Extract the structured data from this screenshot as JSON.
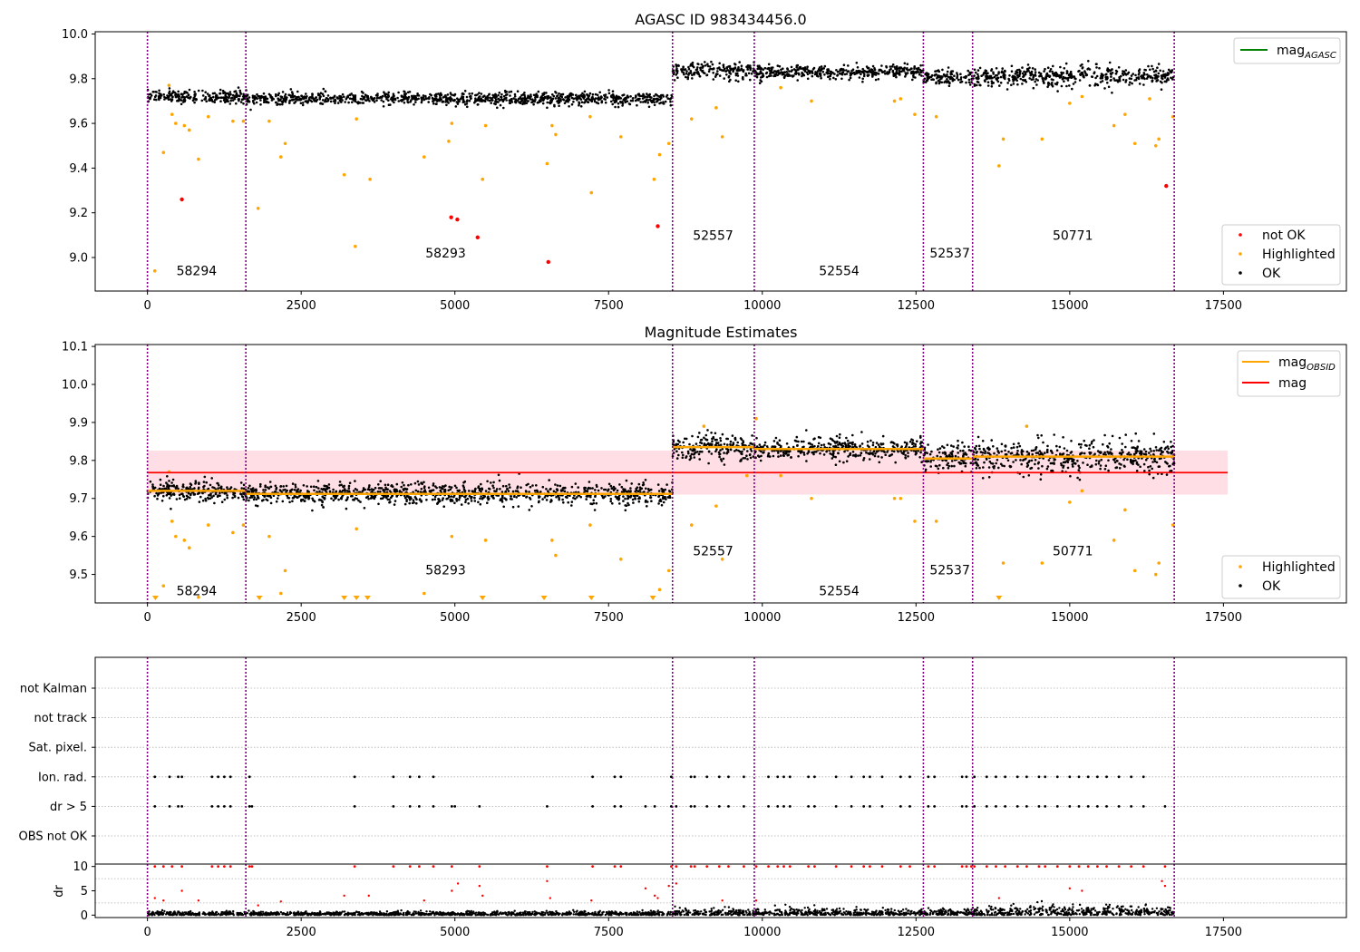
{
  "colors": {
    "ok": "#000000",
    "highlighted": "#ffa500",
    "not_ok": "#ff0000",
    "mag_agasc": "#008000",
    "mag_obsid": "#ffa500",
    "mag": "#ff0000",
    "band": "#ffc0cb",
    "obs_divider": "#800080",
    "grid": "#b0b0b0"
  },
  "chart_data": [
    {
      "type": "scatter",
      "title": "AGASC ID 983434456.0",
      "xlim": [
        -850,
        19500
      ],
      "ylim": [
        8.85,
        10.01
      ],
      "xticks": [
        0,
        2500,
        5000,
        7500,
        10000,
        12500,
        15000,
        17500
      ],
      "yticks": [
        9.0,
        9.2,
        9.4,
        9.6,
        9.8,
        10.0
      ],
      "ytick_labels": [
        "9.0",
        "9.2",
        "9.4",
        "9.6",
        "9.8",
        "10.0"
      ],
      "line_legend": [
        {
          "name": "mag",
          "sub": "AGASC",
          "color": "#008000"
        }
      ],
      "legend_top_placement": "top-right",
      "scatter_legend": [
        "not OK",
        "Highlighted",
        "OK"
      ],
      "legend_bottom_placement": "bottom-right",
      "obs_boundaries": [
        0,
        1600,
        8540,
        9870,
        12620,
        13420,
        16700
      ],
      "observations": [
        {
          "obsid": "58294",
          "x_start": 0,
          "x_end": 1600,
          "label_x": 800,
          "label_y": 8.92,
          "mean": 9.72,
          "spread": 0.014
        },
        {
          "obsid": "58293",
          "x_start": 1600,
          "x_end": 8540,
          "label_x": 4850,
          "label_y": 9.0,
          "mean": 9.71,
          "spread": 0.014
        },
        {
          "obsid": "52557",
          "x_start": 8540,
          "x_end": 9870,
          "label_x": 9200,
          "label_y": 9.08,
          "mean": 9.835,
          "spread": 0.018
        },
        {
          "obsid": "52554",
          "x_start": 9870,
          "x_end": 12620,
          "label_x": 11250,
          "label_y": 8.92,
          "mean": 9.83,
          "spread": 0.015
        },
        {
          "obsid": "52537",
          "x_start": 12620,
          "x_end": 13420,
          "label_x": 13050,
          "label_y": 9.0,
          "mean": 9.805,
          "spread": 0.018
        },
        {
          "obsid": "50771",
          "x_start": 13420,
          "x_end": 16700,
          "label_x": 15050,
          "label_y": 9.08,
          "mean": 9.81,
          "spread": 0.022
        }
      ],
      "highlighted_points": [
        [
          120,
          8.94
        ],
        [
          260,
          9.47
        ],
        [
          350,
          9.77
        ],
        [
          400,
          9.64
        ],
        [
          460,
          9.6
        ],
        [
          600,
          9.59
        ],
        [
          680,
          9.57
        ],
        [
          830,
          9.44
        ],
        [
          990,
          9.63
        ],
        [
          1390,
          9.61
        ],
        [
          1560,
          9.61
        ],
        [
          1800,
          9.22
        ],
        [
          1980,
          9.61
        ],
        [
          2170,
          9.45
        ],
        [
          2240,
          9.51
        ],
        [
          3200,
          9.37
        ],
        [
          3380,
          9.05
        ],
        [
          3400,
          9.62
        ],
        [
          3620,
          9.35
        ],
        [
          4500,
          9.45
        ],
        [
          4900,
          9.52
        ],
        [
          4950,
          9.6
        ],
        [
          5450,
          9.35
        ],
        [
          5500,
          9.59
        ],
        [
          6500,
          9.42
        ],
        [
          6580,
          9.59
        ],
        [
          6640,
          9.55
        ],
        [
          7200,
          9.63
        ],
        [
          7220,
          9.29
        ],
        [
          7700,
          9.54
        ],
        [
          8240,
          9.35
        ],
        [
          8330,
          9.46
        ],
        [
          8480,
          9.51
        ],
        [
          8850,
          9.62
        ],
        [
          9350,
          9.54
        ],
        [
          9250,
          9.67
        ],
        [
          10300,
          9.76
        ],
        [
          10800,
          9.7
        ],
        [
          12150,
          9.7
        ],
        [
          12250,
          9.71
        ],
        [
          12480,
          9.64
        ],
        [
          12830,
          9.63
        ],
        [
          13850,
          9.41
        ],
        [
          13920,
          9.53
        ],
        [
          14550,
          9.53
        ],
        [
          15000,
          9.69
        ],
        [
          15200,
          9.72
        ],
        [
          15720,
          9.59
        ],
        [
          15900,
          9.64
        ],
        [
          16060,
          9.51
        ],
        [
          16400,
          9.5
        ],
        [
          16450,
          9.53
        ],
        [
          16680,
          9.63
        ],
        [
          16300,
          9.71
        ]
      ],
      "not_ok_points": [
        [
          560,
          9.26
        ],
        [
          4940,
          9.18
        ],
        [
          5040,
          9.17
        ],
        [
          5370,
          9.09
        ],
        [
          6520,
          8.98
        ],
        [
          8300,
          9.14
        ],
        [
          16570,
          9.32
        ]
      ]
    },
    {
      "type": "scatter",
      "title": "Magnitude Estimates",
      "xlim": [
        -850,
        19500
      ],
      "ylim": [
        9.425,
        10.105
      ],
      "xticks": [
        0,
        2500,
        5000,
        7500,
        10000,
        12500,
        15000,
        17500
      ],
      "yticks": [
        9.5,
        9.6,
        9.7,
        9.8,
        9.9,
        10.0,
        10.1
      ],
      "ytick_labels": [
        "9.5",
        "9.6",
        "9.7",
        "9.8",
        "9.9",
        "10.0",
        "10.1"
      ],
      "line_legend": [
        {
          "name": "mag",
          "sub": "OBSID",
          "color": "#ffa500"
        },
        {
          "name": "mag",
          "sub": "",
          "color": "#ff0000"
        }
      ],
      "legend_top_placement": "top-right",
      "scatter_legend": [
        "Highlighted",
        "OK"
      ],
      "legend_bottom_placement": "bottom-right",
      "mag": 9.768,
      "mag_band": [
        9.71,
        9.826
      ],
      "mag_band_xlim": [
        0,
        17570
      ],
      "obs_boundaries": [
        0,
        1600,
        8540,
        9870,
        12620,
        13420,
        16700
      ],
      "observations": [
        {
          "obsid": "58294",
          "x_start": 0,
          "x_end": 1600,
          "label_x": 800,
          "label_y": 9.445,
          "mean": 9.72,
          "spread": 0.014
        },
        {
          "obsid": "58293",
          "x_start": 1600,
          "x_end": 8540,
          "label_x": 4850,
          "label_y": 9.5,
          "mean": 9.712,
          "spread": 0.014
        },
        {
          "obsid": "52557",
          "x_start": 8540,
          "x_end": 9870,
          "label_x": 9200,
          "label_y": 9.55,
          "mean": 9.835,
          "spread": 0.018
        },
        {
          "obsid": "52554",
          "x_start": 9870,
          "x_end": 12620,
          "label_x": 11250,
          "label_y": 9.445,
          "mean": 9.83,
          "spread": 0.015
        },
        {
          "obsid": "52537",
          "x_start": 12620,
          "x_end": 13420,
          "label_x": 13050,
          "label_y": 9.5,
          "mean": 9.805,
          "spread": 0.018
        },
        {
          "obsid": "50771",
          "x_start": 13420,
          "x_end": 16700,
          "label_x": 15050,
          "label_y": 9.55,
          "mean": 9.81,
          "spread": 0.022
        }
      ],
      "highlighted_points": [
        [
          260,
          9.47
        ],
        [
          350,
          9.77
        ],
        [
          400,
          9.64
        ],
        [
          460,
          9.6
        ],
        [
          600,
          9.59
        ],
        [
          680,
          9.57
        ],
        [
          830,
          9.44
        ],
        [
          990,
          9.63
        ],
        [
          1390,
          9.61
        ],
        [
          1560,
          9.63
        ],
        [
          1980,
          9.6
        ],
        [
          2170,
          9.45
        ],
        [
          2240,
          9.51
        ],
        [
          3400,
          9.62
        ],
        [
          4500,
          9.45
        ],
        [
          4950,
          9.6
        ],
        [
          5500,
          9.59
        ],
        [
          6580,
          9.59
        ],
        [
          6640,
          9.55
        ],
        [
          7200,
          9.63
        ],
        [
          7700,
          9.54
        ],
        [
          8330,
          9.46
        ],
        [
          8480,
          9.51
        ],
        [
          8850,
          9.63
        ],
        [
          9250,
          9.68
        ],
        [
          9350,
          9.54
        ],
        [
          9050,
          9.89
        ],
        [
          9900,
          9.91
        ],
        [
          10300,
          9.76
        ],
        [
          10800,
          9.7
        ],
        [
          12150,
          9.7
        ],
        [
          12250,
          9.7
        ],
        [
          12480,
          9.64
        ],
        [
          12830,
          9.64
        ],
        [
          13920,
          9.53
        ],
        [
          14300,
          9.89
        ],
        [
          14550,
          9.53
        ],
        [
          15000,
          9.69
        ],
        [
          15200,
          9.72
        ],
        [
          15720,
          9.59
        ],
        [
          15900,
          9.67
        ],
        [
          16060,
          9.51
        ],
        [
          16400,
          9.5
        ],
        [
          16450,
          9.53
        ],
        [
          16680,
          9.63
        ],
        [
          9750,
          9.76
        ]
      ],
      "below_range_markers": [
        130,
        1820,
        3200,
        3400,
        3580,
        5450,
        6450,
        7220,
        8220,
        13850
      ]
    },
    {
      "type": "scatter",
      "title": "",
      "xlim": [
        -850,
        19500
      ],
      "flag_rows": [
        "not Kalman",
        "not track",
        "Sat. pixel.",
        "Ion. rad.",
        "dr > 5",
        "OBS not OK"
      ],
      "obs_boundaries": [
        0,
        1600,
        8540,
        9870,
        12620,
        13420,
        16700
      ],
      "ion_rad_x": [
        120,
        360,
        500,
        560,
        1050,
        1150,
        1250,
        1350,
        1660,
        3370,
        4000,
        4270,
        4420,
        4650,
        7240,
        7600,
        7700,
        8520,
        8840,
        8900,
        9100,
        9300,
        9450,
        9700,
        10100,
        10250,
        10350,
        10450,
        10750,
        10850,
        11200,
        11450,
        11650,
        11750,
        11950,
        12250,
        12400,
        12700,
        12800,
        13250,
        13320,
        13450,
        13650,
        13800,
        13950,
        14150,
        14300,
        14500,
        14600,
        14800,
        15000,
        15150,
        15300,
        15450,
        15600,
        15800,
        16000,
        16200
      ],
      "dr_gt5_x": [
        120,
        360,
        500,
        560,
        1050,
        1150,
        1250,
        1350,
        1660,
        1700,
        3370,
        4000,
        4270,
        4420,
        4650,
        4950,
        5000,
        5400,
        6500,
        7240,
        7600,
        7700,
        8100,
        8250,
        8520,
        8600,
        8840,
        8900,
        9100,
        9300,
        9450,
        9700,
        10100,
        10250,
        10350,
        10450,
        10750,
        10850,
        11200,
        11450,
        11650,
        11750,
        11950,
        12250,
        12400,
        12700,
        12800,
        13250,
        13320,
        13450,
        13650,
        13800,
        13950,
        14150,
        14300,
        14500,
        14600,
        14800,
        15000,
        15150,
        15300,
        15450,
        15600,
        15800,
        16000,
        16200,
        16550
      ],
      "ylabel": "dr",
      "dr_ylim": [
        -0.5,
        10.5
      ],
      "dr_yticks": [
        0,
        5,
        10
      ],
      "dr_ytick_labels": [
        "0",
        "5",
        "10"
      ],
      "dr_xticks": [
        0,
        2500,
        5000,
        7500,
        10000,
        12500,
        15000,
        17500
      ],
      "dr_high_x": [
        120,
        260,
        400,
        560,
        1050,
        1150,
        1250,
        1350,
        1660,
        1700,
        3370,
        4000,
        4270,
        4420,
        4650,
        4950,
        5400,
        6500,
        7240,
        7600,
        7700,
        8520,
        8600,
        8840,
        8900,
        9100,
        9300,
        9450,
        9700,
        9900,
        10100,
        10250,
        10350,
        10450,
        10750,
        10850,
        11200,
        11450,
        11650,
        11750,
        11950,
        12250,
        12400,
        12700,
        12800,
        13250,
        13320,
        13400,
        13450,
        13650,
        13800,
        13950,
        14150,
        14300,
        14500,
        14600,
        14800,
        15000,
        15150,
        15300,
        15450,
        15600,
        15800,
        16000,
        16200,
        16550
      ],
      "dr_mid_points": [
        [
          120,
          3.5
        ],
        [
          260,
          3.0
        ],
        [
          560,
          5.0
        ],
        [
          830,
          3.0
        ],
        [
          1800,
          2.0
        ],
        [
          2170,
          2.8
        ],
        [
          3200,
          4.0
        ],
        [
          3600,
          4.0
        ],
        [
          4500,
          3.0
        ],
        [
          4950,
          5.0
        ],
        [
          5050,
          6.5
        ],
        [
          5400,
          6.0
        ],
        [
          5450,
          4.0
        ],
        [
          6500,
          7.0
        ],
        [
          6550,
          3.5
        ],
        [
          7220,
          3.0
        ],
        [
          8100,
          5.5
        ],
        [
          8250,
          4.0
        ],
        [
          8300,
          3.5
        ],
        [
          8480,
          6.0
        ],
        [
          8600,
          6.5
        ],
        [
          9350,
          3.0
        ],
        [
          9900,
          3.0
        ],
        [
          13850,
          3.5
        ],
        [
          15000,
          5.5
        ],
        [
          15200,
          5.0
        ],
        [
          16500,
          7.0
        ],
        [
          16550,
          6.0
        ]
      ]
    }
  ]
}
